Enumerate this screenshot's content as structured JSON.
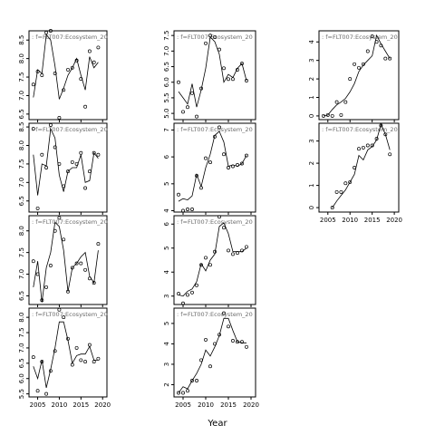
{
  "chart_data": {
    "type": "scatter",
    "xlabel": "Year",
    "x_ticks": [
      2005,
      2010,
      2015,
      2020
    ],
    "panels": [
      {
        "strip": ":  f=FLT007:Ecosystem_20",
        "xlim": [
          2003,
          2021
        ],
        "ylim": [
          6.35,
          8.75
        ],
        "y_ticks": [
          6.5,
          7.0,
          7.5,
          8.0,
          8.5
        ],
        "years": [
          2004,
          2005,
          2006,
          2007,
          2008,
          2009,
          2010,
          2011,
          2012,
          2013,
          2014,
          2015,
          2016,
          2017,
          2018,
          2019
        ],
        "observed": [
          7.3,
          7.65,
          7.55,
          8.7,
          8.75,
          7.6,
          6.4,
          7.15,
          7.7,
          7.75,
          7.95,
          7.45,
          6.7,
          8.2,
          7.9,
          8.3
        ],
        "fitted": [
          6.95,
          7.7,
          7.6,
          8.65,
          8.5,
          7.8,
          6.9,
          7.2,
          7.55,
          7.75,
          8.0,
          7.55,
          7.15,
          8.05,
          7.75,
          7.9
        ]
      },
      {
        "strip": ":  f=FLT007:Ecosystem_20",
        "xlim": [
          2003,
          2021
        ],
        "ylim": [
          4.8,
          7.65
        ],
        "y_ticks": [
          5.0,
          5.5,
          6.0,
          6.5,
          7.0,
          7.5
        ],
        "years": [
          2004,
          2005,
          2006,
          2007,
          2008,
          2009,
          2010,
          2011,
          2012,
          2013,
          2014,
          2015,
          2016,
          2017,
          2018,
          2019
        ],
        "observed": [
          6.0,
          5.05,
          5.2,
          5.65,
          4.9,
          5.8,
          7.25,
          7.5,
          7.45,
          7.05,
          6.45,
          6.1,
          6.1,
          6.4,
          6.6,
          6.05
        ],
        "fitted": [
          5.7,
          5.5,
          5.3,
          5.95,
          5.2,
          5.75,
          6.45,
          7.45,
          7.3,
          6.9,
          6.0,
          6.25,
          6.15,
          6.45,
          6.6,
          6.05
        ]
      },
      {
        "strip": ":  f=FLT007:Ecosystem_20",
        "xlim": [
          2003,
          2021
        ],
        "ylim": [
          -0.2,
          4.6
        ],
        "y_ticks": [
          0,
          1,
          2,
          3,
          4
        ],
        "years": [
          2004,
          2005,
          2006,
          2007,
          2008,
          2009,
          2010,
          2011,
          2012,
          2013,
          2014,
          2015,
          2016,
          2017,
          2018,
          2019
        ],
        "observed": [
          0.0,
          0.05,
          0.0,
          0.75,
          0.05,
          0.75,
          2.0,
          2.8,
          2.6,
          2.8,
          3.5,
          4.3,
          4.0,
          3.8,
          3.1,
          3.1
        ],
        "fitted": [
          0.0,
          0.05,
          0.35,
          0.6,
          0.75,
          0.95,
          1.3,
          1.75,
          2.4,
          2.75,
          3.0,
          3.25,
          4.35,
          3.9,
          3.5,
          3.1
        ]
      },
      {
        "strip": ":  f=FLT007:Ecosystem_20",
        "xlim": [
          2003,
          2021
        ],
        "ylim": [
          6.2,
          8.6
        ],
        "y_ticks": [
          6.5,
          7.0,
          7.5,
          8.0,
          8.5
        ],
        "years": [
          2004,
          2005,
          2006,
          2007,
          2008,
          2009,
          2010,
          2011,
          2012,
          2013,
          2014,
          2015,
          2016,
          2017,
          2018,
          2019
        ],
        "observed": [
          8.45,
          6.3,
          7.75,
          7.4,
          8.55,
          7.95,
          7.5,
          6.9,
          7.3,
          7.55,
          7.5,
          7.8,
          6.85,
          7.3,
          7.8,
          7.75
        ],
        "fitted": [
          7.75,
          6.65,
          7.5,
          7.45,
          8.45,
          8.2,
          7.2,
          6.75,
          7.3,
          7.4,
          7.4,
          7.75,
          7.0,
          7.05,
          7.8,
          7.65
        ]
      },
      {
        "strip": ":  f=FLT007:Ecosystem_20",
        "xlim": [
          2003,
          2021
        ],
        "ylim": [
          3.95,
          7.25
        ],
        "y_ticks": [
          4.0,
          5.0,
          6.0,
          7.0
        ],
        "years": [
          2004,
          2005,
          2006,
          2007,
          2008,
          2009,
          2010,
          2011,
          2012,
          2013,
          2014,
          2015,
          2016,
          2017,
          2018,
          2019
        ],
        "observed": [
          4.6,
          4.0,
          4.05,
          4.05,
          5.3,
          4.85,
          5.95,
          5.8,
          6.75,
          7.1,
          6.1,
          5.6,
          5.65,
          5.7,
          5.75,
          6.05
        ],
        "fitted": [
          4.35,
          4.45,
          4.4,
          4.55,
          5.35,
          4.9,
          5.6,
          6.1,
          6.8,
          6.95,
          6.55,
          5.65,
          5.7,
          5.65,
          5.75,
          6.05
        ]
      },
      {
        "strip": ":  f=FLT007:Ecosystem_20",
        "xlim": [
          2003,
          2021
        ],
        "ylim": [
          -0.2,
          3.8
        ],
        "y_ticks": [
          0,
          1,
          2,
          3
        ],
        "years": [
          2006,
          2007,
          2008,
          2009,
          2010,
          2011,
          2012,
          2013,
          2014,
          2015,
          2016,
          2017,
          2018,
          2019
        ],
        "observed": [
          0.0,
          0.7,
          0.7,
          1.1,
          1.15,
          1.8,
          2.65,
          2.7,
          2.8,
          2.8,
          3.1,
          3.7,
          3.3,
          2.4
        ],
        "fitted": [
          0.0,
          0.3,
          0.55,
          0.8,
          1.15,
          1.5,
          2.35,
          2.15,
          2.6,
          2.75,
          3.05,
          3.75,
          3.3,
          2.6
        ]
      },
      {
        "strip": ":  f=FLT007:Ecosystem_20",
        "xlim": [
          2003,
          2021
        ],
        "ylim": [
          6.3,
          8.35
        ],
        "y_ticks": [
          6.5,
          7.0,
          7.5,
          8.0
        ],
        "years": [
          2004,
          2005,
          2006,
          2007,
          2008,
          2009,
          2010,
          2011,
          2012,
          2013,
          2014,
          2015,
          2016,
          2017,
          2018,
          2019
        ],
        "observed": [
          7.3,
          7.0,
          6.4,
          6.7,
          7.2,
          8.0,
          8.3,
          7.8,
          6.6,
          7.15,
          7.25,
          7.25,
          7.1,
          6.9,
          6.8,
          7.7
        ],
        "fitted": [
          6.7,
          7.3,
          6.35,
          7.15,
          7.5,
          8.2,
          8.1,
          7.55,
          6.6,
          7.15,
          7.25,
          7.4,
          7.5,
          6.95,
          6.8,
          7.55
        ]
      },
      {
        "strip": ":  f=FLT007:Ecosystem_20",
        "xlim": [
          2003,
          2021
        ],
        "ylim": [
          2.65,
          6.35
        ],
        "y_ticks": [
          3,
          4,
          5,
          6
        ],
        "years": [
          2004,
          2005,
          2006,
          2007,
          2008,
          2009,
          2010,
          2011,
          2012,
          2013,
          2014,
          2015,
          2016,
          2017,
          2018,
          2019
        ],
        "observed": [
          3.1,
          2.7,
          3.05,
          3.15,
          3.45,
          4.3,
          4.6,
          4.3,
          4.85,
          6.3,
          5.85,
          4.9,
          4.75,
          4.8,
          4.9,
          5.05
        ],
        "fitted": [
          3.05,
          3.0,
          3.2,
          3.3,
          3.6,
          4.35,
          4.05,
          4.5,
          4.75,
          5.9,
          6.05,
          5.6,
          4.85,
          4.85,
          4.85,
          5.0
        ]
      },
      {
        "strip": ":  f=FLT007:Ecosystem_20",
        "xlim": [
          2003,
          2021
        ],
        "ylim": [
          5.4,
          8.3
        ],
        "y_ticks": [
          5.5,
          6.0,
          6.5,
          7.0,
          7.5,
          8.0
        ],
        "years": [
          2004,
          2005,
          2006,
          2007,
          2008,
          2009,
          2010,
          2011,
          2012,
          2013,
          2014,
          2015,
          2016,
          2017,
          2018,
          2019
        ],
        "observed": [
          6.7,
          5.6,
          6.55,
          5.5,
          6.25,
          6.9,
          8.25,
          8.0,
          7.3,
          6.45,
          7.0,
          6.6,
          6.55,
          7.1,
          6.55,
          6.65
        ],
        "fitted": [
          6.4,
          6.0,
          6.6,
          5.7,
          6.3,
          7.0,
          7.85,
          7.85,
          7.25,
          6.5,
          6.75,
          6.8,
          6.8,
          7.05,
          6.6,
          6.6
        ]
      },
      {
        "strip": ":  f=FLT007:Ecosystem_20",
        "xlim": [
          2003,
          2021
        ],
        "ylim": [
          1.4,
          5.75
        ],
        "y_ticks": [
          2,
          3,
          4,
          5
        ],
        "years": [
          2004,
          2005,
          2006,
          2007,
          2008,
          2009,
          2010,
          2011,
          2012,
          2013,
          2014,
          2015,
          2016,
          2017,
          2018,
          2019
        ],
        "observed": [
          1.6,
          1.6,
          1.7,
          2.2,
          2.2,
          3.2,
          4.2,
          2.9,
          4.0,
          4.45,
          5.5,
          4.85,
          4.15,
          4.1,
          4.1,
          3.85
        ],
        "fitted": [
          1.6,
          1.9,
          1.8,
          2.2,
          2.55,
          3.0,
          3.7,
          3.4,
          3.85,
          4.4,
          5.25,
          5.25,
          4.65,
          4.1,
          4.05,
          4.05
        ]
      }
    ]
  }
}
